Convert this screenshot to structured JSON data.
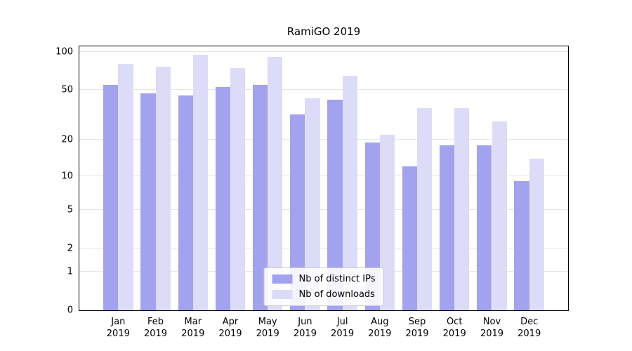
{
  "chart_data": {
    "type": "bar",
    "title": "RamiGO 2019",
    "months": [
      "Jan",
      "Feb",
      "Mar",
      "Apr",
      "May",
      "Jun",
      "Jul",
      "Aug",
      "Sep",
      "Oct",
      "Nov",
      "Dec"
    ],
    "year": "2019",
    "categories": [
      "Jan 2019",
      "Feb 2019",
      "Mar 2019",
      "Apr 2019",
      "May 2019",
      "Jun 2019",
      "Jul 2019",
      "Aug 2019",
      "Sep 2019",
      "Oct 2019",
      "Nov 2019",
      "Dec 2019"
    ],
    "series": [
      {
        "name": "Nb of distinct IPs",
        "color": "#a2a2ef",
        "values": [
          55,
          47,
          45,
          53,
          55,
          32,
          42,
          19,
          12,
          18,
          18,
          9
        ]
      },
      {
        "name": "Nb of downloads",
        "color": "#dcdcf8",
        "values": [
          80,
          76,
          95,
          74,
          91,
          43,
          65,
          22,
          36,
          36,
          28,
          14
        ]
      }
    ],
    "yscale": "log1p",
    "ylim": [
      0,
      110
    ],
    "yticks": [
      0,
      1,
      2,
      5,
      10,
      20,
      50,
      100
    ],
    "grid": "horizontal",
    "grid_color": "#e6e6e6",
    "axis_color": "#000000",
    "background": "#ffffff",
    "legend_position": "lower center"
  }
}
